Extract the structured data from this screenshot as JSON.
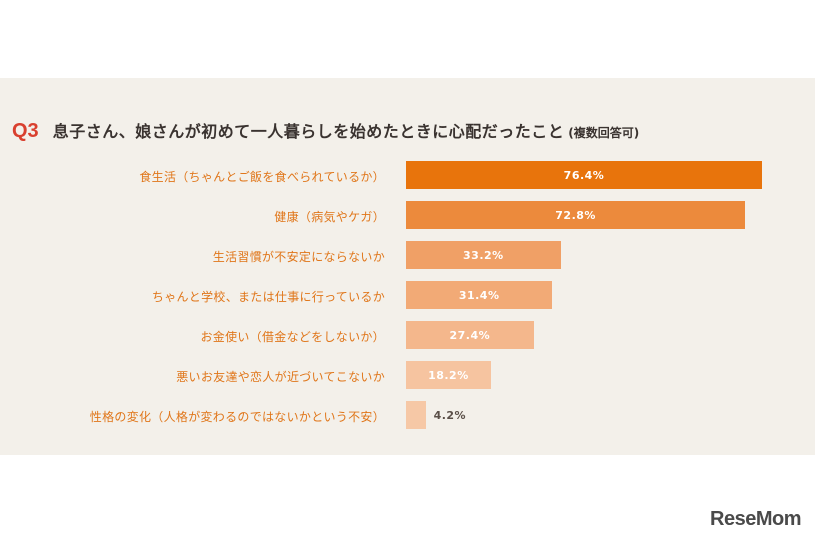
{
  "title": {
    "q_number": "Q3",
    "text": "息子さん、娘さんが初めて一人暮らしを始めたときに心配だったこと",
    "note": "(複数回答可)"
  },
  "chart_data": {
    "type": "bar",
    "orientation": "horizontal",
    "categories": [
      "食生活（ちゃんとご飯を食べられているか）",
      "健康（病気やケガ）",
      "生活習慣が不安定にならないか",
      "ちゃんと学校、または仕事に行っているか",
      "お金使い（借金などをしないか）",
      "悪いお友達や恋人が近づいてこないか",
      "性格の変化（人格が変わるのではないかという不安）"
    ],
    "values": [
      76.4,
      72.8,
      33.2,
      31.4,
      27.4,
      18.2,
      4.2
    ],
    "value_labels": [
      "76.4%",
      "72.8%",
      "33.2%",
      "31.4%",
      "27.4%",
      "18.2%",
      "4.2%"
    ],
    "colors": [
      "#e8740c",
      "#ec8a3c",
      "#f0a066",
      "#f2aa76",
      "#f4b78c",
      "#f6c4a0",
      "#f6c8a6"
    ],
    "label_color": "#e0761a",
    "xlim": [
      0,
      100
    ]
  },
  "logo": "ReseMom"
}
